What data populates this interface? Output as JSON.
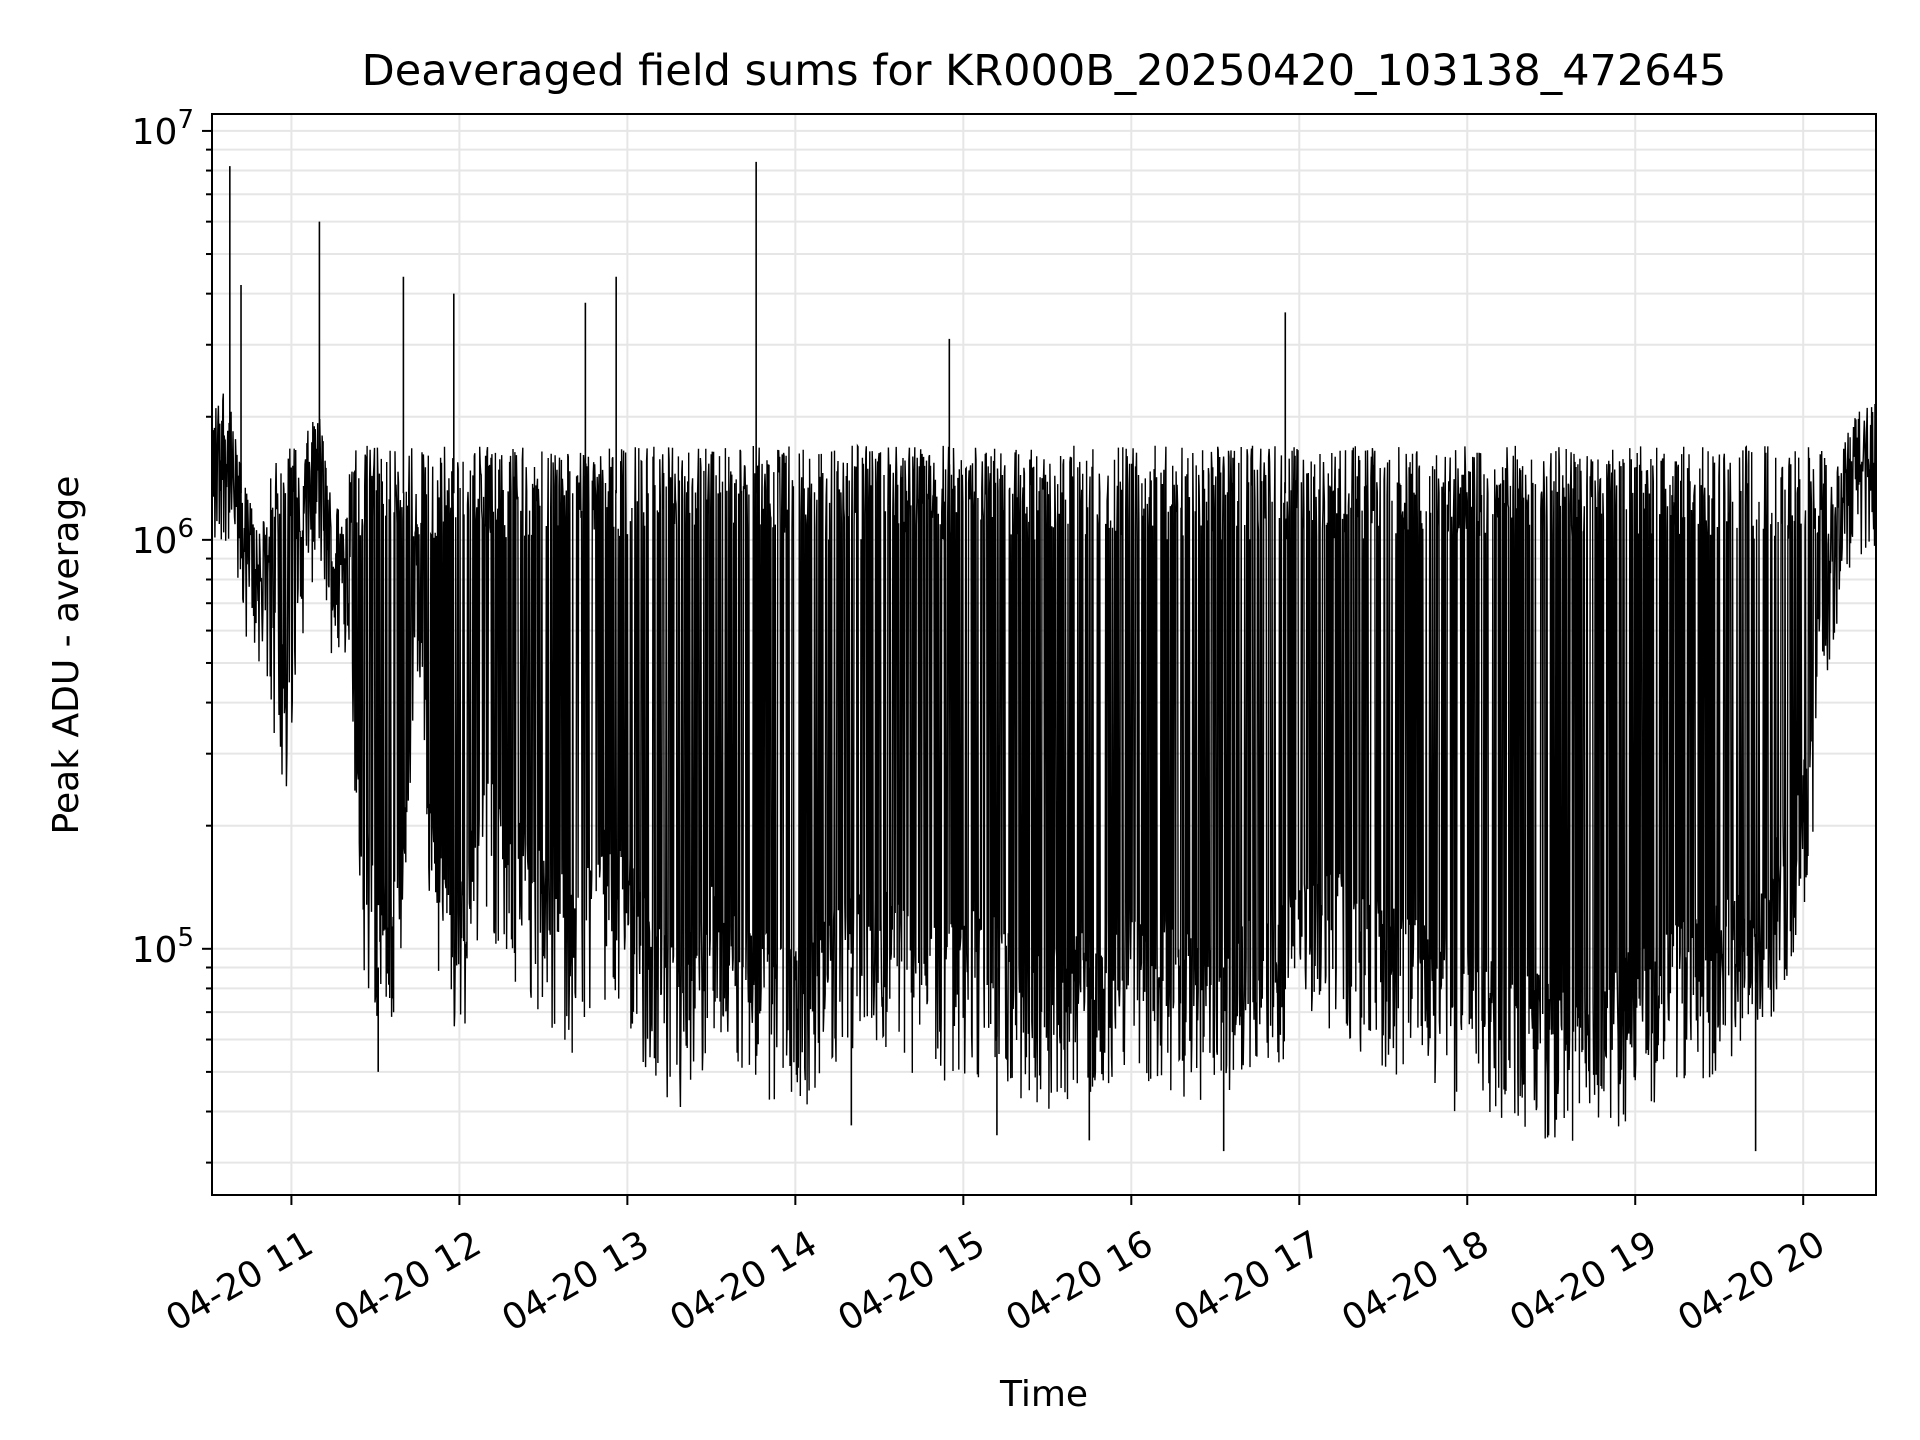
{
  "chart_data": {
    "type": "line",
    "title": "Deaveraged field sums for KR000B_20250420_103138_472645",
    "xlabel": "Time",
    "ylabel": "Peak ADU - average",
    "yscale": "log",
    "ylim": [
      25000,
      11000000
    ],
    "xlim": [
      "2025-04-20 10:31:38",
      "2025-04-20 20:26:00"
    ],
    "xticks": [
      {
        "t": "2025-04-20 11:00",
        "label": "04-20 11"
      },
      {
        "t": "2025-04-20 12:00",
        "label": "04-20 12"
      },
      {
        "t": "2025-04-20 13:00",
        "label": "04-20 13"
      },
      {
        "t": "2025-04-20 14:00",
        "label": "04-20 14"
      },
      {
        "t": "2025-04-20 15:00",
        "label": "04-20 15"
      },
      {
        "t": "2025-04-20 16:00",
        "label": "04-20 16"
      },
      {
        "t": "2025-04-20 17:00",
        "label": "04-20 17"
      },
      {
        "t": "2025-04-20 18:00",
        "label": "04-20 18"
      },
      {
        "t": "2025-04-20 19:00",
        "label": "04-20 19"
      },
      {
        "t": "2025-04-20 20:00",
        "label": "04-20 20"
      }
    ],
    "yticks": [
      {
        "value": 100000,
        "base": "10",
        "exp": "5"
      },
      {
        "value": 1000000,
        "base": "10",
        "exp": "6"
      },
      {
        "value": 10000000,
        "base": "10",
        "exp": "7"
      }
    ],
    "grid": true,
    "line_color": "#000000",
    "grid_color": "#e6e6e6",
    "series": [
      {
        "x": [
          "2025-04-20 10:32",
          "2025-04-20 10:36",
          "2025-04-20 10:40",
          "2025-04-20 10:44",
          "2025-04-20 10:48",
          "2025-04-20 10:52",
          "2025-04-20 10:56",
          "2025-04-20 11:00",
          "2025-04-20 11:05",
          "2025-04-20 11:10",
          "2025-04-20 11:15",
          "2025-04-20 11:20",
          "2025-04-20 11:25",
          "2025-04-20 11:30",
          "2025-04-20 11:35",
          "2025-04-20 11:40",
          "2025-04-20 11:45",
          "2025-04-20 11:50",
          "2025-04-20 11:55",
          "2025-04-20 12:00",
          "2025-04-20 12:10",
          "2025-04-20 12:20",
          "2025-04-20 12:30",
          "2025-04-20 12:40",
          "2025-04-20 12:50",
          "2025-04-20 13:00",
          "2025-04-20 13:10",
          "2025-04-20 13:20",
          "2025-04-20 13:30",
          "2025-04-20 13:45",
          "2025-04-20 14:00",
          "2025-04-20 14:15",
          "2025-04-20 14:30",
          "2025-04-20 14:45",
          "2025-04-20 15:00",
          "2025-04-20 15:15",
          "2025-04-20 15:30",
          "2025-04-20 15:45",
          "2025-04-20 16:00",
          "2025-04-20 16:15",
          "2025-04-20 16:30",
          "2025-04-20 16:45",
          "2025-04-20 17:00",
          "2025-04-20 17:15",
          "2025-04-20 17:30",
          "2025-04-20 17:45",
          "2025-04-20 18:00",
          "2025-04-20 18:15",
          "2025-04-20 18:30",
          "2025-04-20 18:45",
          "2025-04-20 19:00",
          "2025-04-20 19:15",
          "2025-04-20 19:30",
          "2025-04-20 19:45",
          "2025-04-20 20:00",
          "2025-04-20 20:10",
          "2025-04-20 20:20",
          "2025-04-20 20:26"
        ],
        "y": [
          1400000,
          1700000,
          1200000,
          900000,
          800000,
          700000,
          500000,
          300000,
          1200000,
          1400000,
          800000,
          900000,
          150000,
          120000,
          100000,
          130000,
          800000,
          150000,
          120000,
          100000,
          200000,
          150000,
          120000,
          100000,
          140000,
          120000,
          80000,
          70000,
          100000,
          80000,
          70000,
          90000,
          100000,
          80000,
          90000,
          80000,
          70000,
          80000,
          90000,
          80000,
          70000,
          90000,
          100000,
          110000,
          90000,
          80000,
          70000,
          65000,
          60000,
          60000,
          70000,
          80000,
          90000,
          100000,
          200000,
          900000,
          1500000,
          1500000
        ]
      }
    ],
    "peak_features": [
      {
        "t": "2025-04-20 10:38",
        "value": 8200000
      },
      {
        "t": "2025-04-20 10:42",
        "value": 4200000
      },
      {
        "t": "2025-04-20 11:10",
        "value": 6000000
      },
      {
        "t": "2025-04-20 11:40",
        "value": 4400000
      },
      {
        "t": "2025-04-20 11:58",
        "value": 4000000
      },
      {
        "t": "2025-04-20 12:45",
        "value": 3800000
      },
      {
        "t": "2025-04-20 12:56",
        "value": 4400000
      },
      {
        "t": "2025-04-20 13:46",
        "value": 8400000
      },
      {
        "t": "2025-04-20 14:55",
        "value": 3100000
      },
      {
        "t": "2025-04-20 16:55",
        "value": 3600000
      }
    ],
    "dip_features": [
      {
        "t": "2025-04-20 11:31",
        "value": 50000
      },
      {
        "t": "2025-04-20 14:20",
        "value": 37000
      },
      {
        "t": "2025-04-20 15:12",
        "value": 35000
      },
      {
        "t": "2025-04-20 15:45",
        "value": 34000
      },
      {
        "t": "2025-04-20 16:33",
        "value": 32000
      },
      {
        "t": "2025-04-20 19:43",
        "value": 32000
      }
    ]
  }
}
